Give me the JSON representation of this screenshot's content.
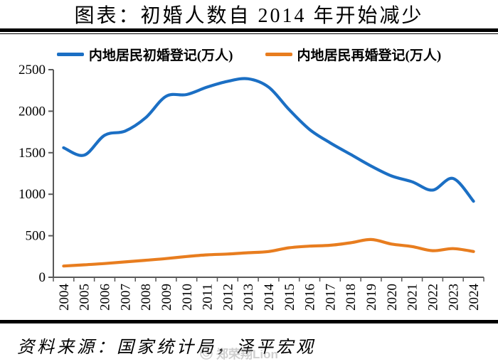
{
  "title": "图表：初婚人数自 2014 年开始减少",
  "chart_data": {
    "type": "line",
    "smoothed": true,
    "grid": false,
    "legend_position": "top",
    "x": [
      2004,
      2005,
      2006,
      2007,
      2008,
      2009,
      2010,
      2011,
      2012,
      2013,
      2014,
      2015,
      2016,
      2017,
      2018,
      2019,
      2020,
      2021,
      2022,
      2023,
      2024
    ],
    "series": [
      {
        "name": "内地居民初婚登记(万人)",
        "color": "#1b6fc4",
        "values": [
          1560,
          1470,
          1710,
          1760,
          1920,
          2180,
          2200,
          2290,
          2360,
          2390,
          2290,
          2020,
          1780,
          1620,
          1480,
          1340,
          1220,
          1150,
          1050,
          1190,
          915
        ]
      },
      {
        "name": "内地居民再婚登记(万人)",
        "color": "#e87d1f",
        "values": [
          135,
          150,
          165,
          185,
          205,
          225,
          250,
          270,
          280,
          295,
          310,
          355,
          375,
          385,
          415,
          455,
          400,
          370,
          320,
          345,
          310
        ]
      }
    ],
    "ylim": [
      0,
      2500
    ],
    "yticks": [
      0,
      500,
      1000,
      1500,
      2000,
      2500
    ],
    "xlabel": "",
    "ylabel": "",
    "axis_color": "#595959"
  },
  "footer": {
    "source": "资料来源：国家统计局，泽平宏观"
  },
  "watermark": {
    "icon": "weibo-icon",
    "text": "郑荣翔Lion"
  }
}
